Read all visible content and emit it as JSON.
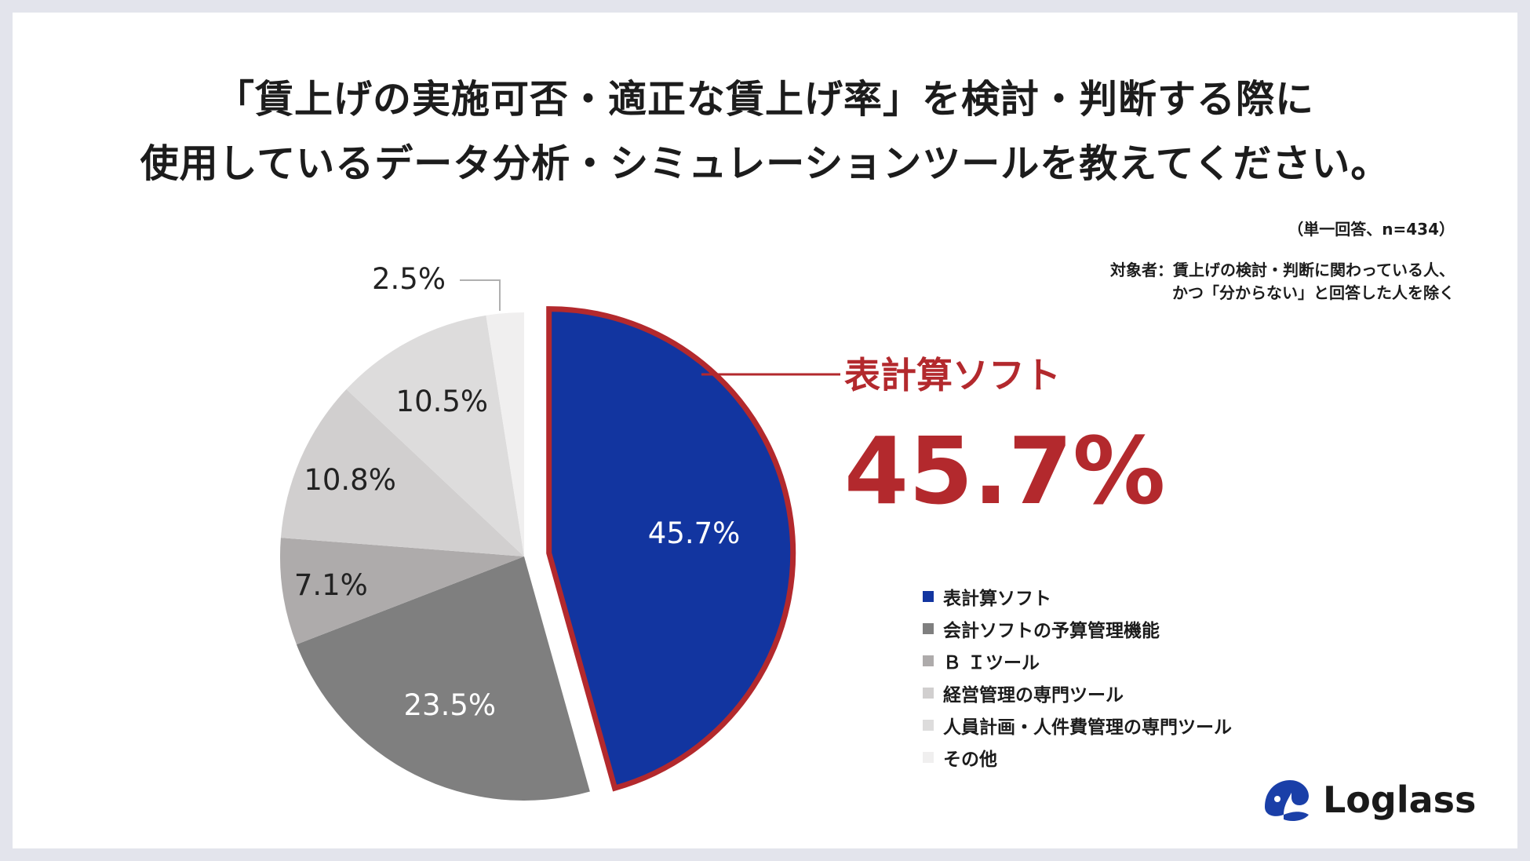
{
  "title": {
    "line1": "「賃上げの実施可否・適正な賃上げ率」を検討・判断する際に",
    "line2": "使用しているデータ分析・シミュレーションツールを教えてください。"
  },
  "notes": {
    "sample": "（単一回答、n=434）",
    "target_line1": "対象者：賃上げの検討・判断に関わっている人、",
    "target_line2": "かつ「分からない」と回答した人を除く"
  },
  "highlight": {
    "label": "表計算ソフト",
    "value": "45.7%"
  },
  "brand": {
    "name": "Loglass",
    "color": "#1a3fa8",
    "accent": "#b3292d"
  },
  "chart_data": {
    "type": "pie",
    "title": "「賃上げの実施可否・適正な賃上げ率」を検討・判断する際に使用しているデータ分析・シミュレーションツールを教えてください。",
    "unit": "%",
    "legend_position": "bottom-right",
    "slices": [
      {
        "label": "表計算ソフト",
        "value": 45.7,
        "value_label": "45.7%",
        "color": "#1235a0",
        "exploded": true
      },
      {
        "label": "会計ソフトの予算管理機能",
        "value": 23.5,
        "value_label": "23.5%",
        "color": "#7f7f7f"
      },
      {
        "label": "ＢＩツール",
        "value": 7.1,
        "value_label": "7.1%",
        "color": "#aeabab"
      },
      {
        "label": "経営管理の専門ツール",
        "value": 10.8,
        "value_label": "10.8%",
        "color": "#d1cfcf"
      },
      {
        "label": "人員計画・人件費管理の専門ツール",
        "value": 10.5,
        "value_label": "10.5%",
        "color": "#dddcdc"
      },
      {
        "label": "その他",
        "value": 2.5,
        "value_label": "2.5%",
        "color": "#f0efef"
      }
    ],
    "legend": [
      "表計算ソフト",
      "会計ソフトの予算管理機能",
      "Ｂ Ｉツール",
      "経営管理の専門ツール",
      "人員計画・人件費管理の専門ツール",
      "その他"
    ]
  }
}
